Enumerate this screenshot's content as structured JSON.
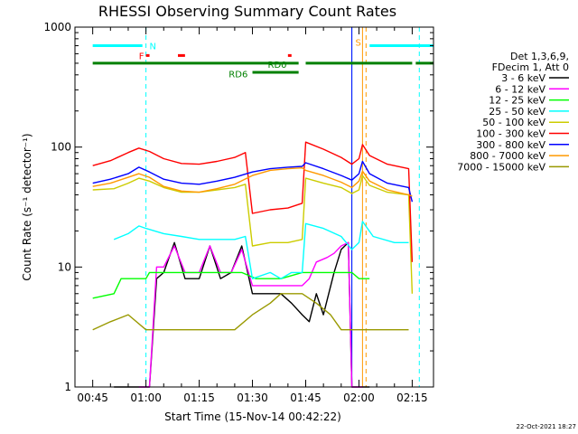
{
  "chart_data": {
    "type": "line",
    "title": "RHESSI Observing Summary Count Rates",
    "xlabel": "Start Time (15-Nov-14 00:42:22)",
    "ylabel": "Count Rate (s⁻¹ detector⁻¹)",
    "y_scale": "log",
    "ylim": [
      1,
      1000
    ],
    "xlim": [
      "00:40",
      "02:21"
    ],
    "x_ticks": [
      "00:45",
      "01:00",
      "01:15",
      "01:30",
      "01:45",
      "02:00",
      "02:15"
    ],
    "y_ticks": [
      "1",
      "10",
      "100",
      "1000"
    ],
    "legend_header": [
      "Det 1,3,6,9,",
      "FDecim 1, Att 0"
    ],
    "legend_position": "right",
    "timestamp": "22-Oct-2021 18:27",
    "series": [
      {
        "name": "3 - 6 keV",
        "color": "#000000",
        "points": [
          [
            "00:51",
            1
          ],
          [
            "00:58",
            1
          ],
          [
            "01:01",
            1
          ],
          [
            "01:03",
            8
          ],
          [
            "01:05",
            9
          ],
          [
            "01:08",
            16
          ],
          [
            "01:11",
            8
          ],
          [
            "01:15",
            8
          ],
          [
            "01:18",
            15
          ],
          [
            "01:21",
            8
          ],
          [
            "01:24",
            9
          ],
          [
            "01:27",
            15
          ],
          [
            "01:30",
            6
          ],
          [
            "01:35",
            6
          ],
          [
            "01:38",
            6
          ],
          [
            "01:41",
            5
          ],
          [
            "01:44",
            4
          ],
          [
            "01:46",
            3.5
          ],
          [
            "01:48",
            6
          ],
          [
            "01:50",
            4
          ],
          [
            "01:53",
            9
          ],
          [
            "01:55",
            14
          ],
          [
            "01:57",
            16
          ],
          [
            "01:58",
            1
          ],
          [
            "02:01",
            1
          ],
          [
            "02:03",
            1
          ]
        ]
      },
      {
        "name": "6 - 12 keV",
        "color": "#ff00ff",
        "points": [
          [
            "00:58",
            1
          ],
          [
            "01:01",
            1
          ],
          [
            "01:03",
            10
          ],
          [
            "01:05",
            10
          ],
          [
            "01:08",
            15
          ],
          [
            "01:11",
            9
          ],
          [
            "01:15",
            9
          ],
          [
            "01:18",
            15
          ],
          [
            "01:21",
            9
          ],
          [
            "01:24",
            9
          ],
          [
            "01:27",
            14
          ],
          [
            "01:30",
            7
          ],
          [
            "01:35",
            7
          ],
          [
            "01:38",
            7
          ],
          [
            "01:41",
            7
          ],
          [
            "01:44",
            7
          ],
          [
            "01:46",
            8
          ],
          [
            "01:48",
            11
          ],
          [
            "01:51",
            12
          ],
          [
            "01:53",
            13
          ],
          [
            "01:55",
            15
          ],
          [
            "01:57",
            16
          ],
          [
            "01:58",
            1
          ],
          [
            "02:01",
            1
          ]
        ]
      },
      {
        "name": "12 - 25 keV",
        "color": "#00ff00",
        "points": [
          [
            "00:45",
            5.5
          ],
          [
            "00:51",
            6
          ],
          [
            "00:53",
            8
          ],
          [
            "01:00",
            8
          ],
          [
            "01:01",
            9
          ],
          [
            "01:15",
            9
          ],
          [
            "01:27",
            9
          ],
          [
            "01:31",
            8
          ],
          [
            "01:38",
            8
          ],
          [
            "01:44",
            9
          ],
          [
            "01:50",
            9
          ],
          [
            "01:55",
            9
          ],
          [
            "01:58",
            9
          ],
          [
            "02:00",
            8
          ],
          [
            "02:03",
            8
          ]
        ]
      },
      {
        "name": "25 - 50 keV",
        "color": "#00ffff",
        "points": [
          [
            "00:51",
            17
          ],
          [
            "00:55",
            19
          ],
          [
            "00:58",
            22
          ],
          [
            "01:00",
            21
          ],
          [
            "01:05",
            19
          ],
          [
            "01:10",
            18
          ],
          [
            "01:15",
            17
          ],
          [
            "01:20",
            17
          ],
          [
            "01:25",
            17
          ],
          [
            "01:28",
            18
          ],
          [
            "01:30",
            8
          ],
          [
            "01:35",
            9
          ],
          [
            "01:38",
            8
          ],
          [
            "01:41",
            9
          ],
          [
            "01:44",
            9
          ],
          [
            "01:45",
            23
          ],
          [
            "01:50",
            21
          ],
          [
            "01:55",
            18
          ],
          [
            "01:58",
            14
          ],
          [
            "02:00",
            16
          ],
          [
            "02:01",
            24
          ],
          [
            "02:04",
            18
          ],
          [
            "02:10",
            16
          ],
          [
            "02:14",
            16
          ]
        ]
      },
      {
        "name": "50 - 100 keV",
        "color": "#cccc00",
        "points": [
          [
            "00:45",
            44
          ],
          [
            "00:51",
            45
          ],
          [
            "00:55",
            50
          ],
          [
            "00:58",
            55
          ],
          [
            "01:01",
            52
          ],
          [
            "01:05",
            46
          ],
          [
            "01:10",
            42
          ],
          [
            "01:15",
            42
          ],
          [
            "01:20",
            44
          ],
          [
            "01:25",
            46
          ],
          [
            "01:28",
            49
          ],
          [
            "01:30",
            15
          ],
          [
            "01:35",
            16
          ],
          [
            "01:40",
            16
          ],
          [
            "01:44",
            17
          ],
          [
            "01:45",
            55
          ],
          [
            "01:50",
            50
          ],
          [
            "01:55",
            46
          ],
          [
            "01:58",
            41
          ],
          [
            "02:00",
            44
          ],
          [
            "02:01",
            58
          ],
          [
            "02:03",
            48
          ],
          [
            "02:08",
            42
          ],
          [
            "02:14",
            40
          ],
          [
            "02:15",
            6
          ]
        ]
      },
      {
        "name": "100 - 300 keV",
        "color": "#ff0000",
        "points": [
          [
            "00:45",
            70
          ],
          [
            "00:50",
            77
          ],
          [
            "00:55",
            90
          ],
          [
            "00:58",
            98
          ],
          [
            "01:01",
            92
          ],
          [
            "01:05",
            80
          ],
          [
            "01:10",
            73
          ],
          [
            "01:15",
            72
          ],
          [
            "01:20",
            76
          ],
          [
            "01:25",
            82
          ],
          [
            "01:28",
            90
          ],
          [
            "01:30",
            28
          ],
          [
            "01:35",
            30
          ],
          [
            "01:40",
            31
          ],
          [
            "01:44",
            34
          ],
          [
            "01:45",
            110
          ],
          [
            "01:50",
            96
          ],
          [
            "01:55",
            82
          ],
          [
            "01:58",
            72
          ],
          [
            "02:00",
            80
          ],
          [
            "02:01",
            105
          ],
          [
            "02:03",
            85
          ],
          [
            "02:08",
            72
          ],
          [
            "02:14",
            66
          ],
          [
            "02:15",
            11
          ]
        ]
      },
      {
        "name": "300 - 800 keV",
        "color": "#0000ff",
        "points": [
          [
            "00:45",
            50
          ],
          [
            "00:50",
            54
          ],
          [
            "00:55",
            60
          ],
          [
            "00:58",
            68
          ],
          [
            "01:01",
            62
          ],
          [
            "01:05",
            54
          ],
          [
            "01:10",
            50
          ],
          [
            "01:15",
            49
          ],
          [
            "01:20",
            52
          ],
          [
            "01:25",
            56
          ],
          [
            "01:30",
            62
          ],
          [
            "01:35",
            66
          ],
          [
            "01:40",
            68
          ],
          [
            "01:44",
            69
          ],
          [
            "01:45",
            74
          ],
          [
            "01:50",
            66
          ],
          [
            "01:55",
            58
          ],
          [
            "01:58",
            53
          ],
          [
            "02:00",
            60
          ],
          [
            "02:01",
            76
          ],
          [
            "02:03",
            60
          ],
          [
            "02:08",
            50
          ],
          [
            "02:14",
            46
          ],
          [
            "02:15",
            35
          ]
        ]
      },
      {
        "name": "800 - 7000 keV",
        "color": "#ff9900",
        "points": [
          [
            "00:45",
            47
          ],
          [
            "00:50",
            50
          ],
          [
            "00:55",
            56
          ],
          [
            "00:58",
            60
          ],
          [
            "01:01",
            56
          ],
          [
            "01:05",
            47
          ],
          [
            "01:10",
            43
          ],
          [
            "01:15",
            42
          ],
          [
            "01:20",
            45
          ],
          [
            "01:25",
            49
          ],
          [
            "01:30",
            58
          ],
          [
            "01:35",
            64
          ],
          [
            "01:40",
            66
          ],
          [
            "01:44",
            67
          ],
          [
            "01:45",
            64
          ],
          [
            "01:50",
            58
          ],
          [
            "01:55",
            51
          ],
          [
            "01:58",
            46
          ],
          [
            "02:00",
            52
          ],
          [
            "02:01",
            63
          ],
          [
            "02:03",
            52
          ],
          [
            "02:08",
            44
          ],
          [
            "02:14",
            40
          ],
          [
            "02:15",
            39
          ]
        ]
      },
      {
        "name": "7000 - 15000 keV",
        "color": "#999900",
        "points": [
          [
            "00:45",
            3
          ],
          [
            "00:50",
            3.5
          ],
          [
            "00:55",
            4
          ],
          [
            "01:00",
            3
          ],
          [
            "01:05",
            3
          ],
          [
            "01:10",
            3
          ],
          [
            "01:15",
            3
          ],
          [
            "01:20",
            3
          ],
          [
            "01:25",
            3
          ],
          [
            "01:30",
            4
          ],
          [
            "01:35",
            5
          ],
          [
            "01:38",
            6
          ],
          [
            "01:41",
            6
          ],
          [
            "01:44",
            6
          ],
          [
            "01:48",
            5
          ],
          [
            "01:52",
            4
          ],
          [
            "01:55",
            3
          ],
          [
            "02:00",
            3
          ],
          [
            "02:05",
            3
          ],
          [
            "02:10",
            3
          ],
          [
            "02:14",
            3
          ]
        ]
      }
    ],
    "vertical_markers": [
      {
        "time": "01:00",
        "color": "#00ffff",
        "style": "dashed"
      },
      {
        "time": "01:58",
        "color": "#00ffff",
        "style": "solid"
      },
      {
        "time": "01:58",
        "color": "#0000ff",
        "style": "solid"
      },
      {
        "time": "02:01",
        "color": "#ff9900",
        "style": "solid"
      },
      {
        "time": "02:02",
        "color": "#ff9900",
        "style": "dashed"
      },
      {
        "time": "02:17",
        "color": "#00ffff",
        "style": "dashed"
      }
    ],
    "flag_bars": [
      {
        "label": "N",
        "color": "#00ffff",
        "level": 700,
        "segments": [
          [
            "00:45",
            "00:59"
          ],
          [
            "02:03",
            "02:21"
          ]
        ]
      },
      {
        "label": "S",
        "color": "#ff9900",
        "level": 700,
        "segments": []
      },
      {
        "label": "F",
        "color": "#ff0000",
        "level": 580,
        "segments": [
          [
            "01:00",
            "01:01"
          ],
          [
            "01:09",
            "01:11"
          ],
          [
            "01:40",
            "01:41"
          ]
        ]
      },
      {
        "label": "RD0",
        "color": "#008000",
        "level": 500,
        "segments": [
          [
            "00:45",
            "01:43"
          ],
          [
            "01:45",
            "02:15"
          ],
          [
            "02:16",
            "02:21"
          ]
        ]
      },
      {
        "label": "RD6",
        "color": "#008000",
        "level": 420,
        "segments": [
          [
            "01:30",
            "01:43"
          ]
        ]
      }
    ],
    "flag_annotations": [
      {
        "label": "RD0",
        "time": "01:37",
        "level": 490
      },
      {
        "label": "RD6",
        "time": "01:26",
        "level": 410
      }
    ]
  }
}
